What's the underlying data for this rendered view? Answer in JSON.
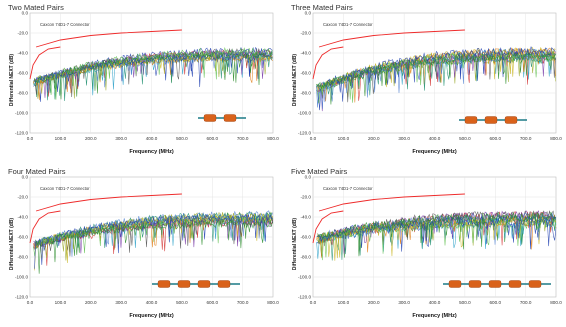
{
  "colors": {
    "limit_line": "#ee2b2b",
    "connector_body": "#d9621b",
    "cable_line": "#1c7a86",
    "gridline": "#e4e4e4",
    "series_palette": [
      "#1f3fb0",
      "#2a8c2a",
      "#d23030",
      "#2aa0c8",
      "#9aa82a",
      "#7a3aa8",
      "#e07a10",
      "#1f8f6f",
      "#555555",
      "#c8b41f",
      "#4f7fd0",
      "#60c050"
    ]
  },
  "chart_data": [
    {
      "type": "line",
      "title": "Two Mated Pairs",
      "note": "Caxcon 74D1-7 Connector",
      "xlabel": "Frequency (MHz)",
      "ylabel": "Differential NEXT (dB)",
      "x_ticks": [
        "0.0",
        "100.0",
        "200.0",
        "300.0",
        "400.0",
        "500.0",
        "600.0",
        "700.0",
        "800.0"
      ],
      "y_ticks": [
        "0.0",
        "-20.0",
        "-40.0",
        "-60.0",
        "-80.0",
        "-100.0",
        "-120.0"
      ],
      "xlim": [
        0,
        800
      ],
      "ylim": [
        -120,
        0
      ],
      "grid": true,
      "limit_curve": [
        [
          0,
          -66
        ],
        [
          10,
          -52
        ],
        [
          30,
          -42
        ],
        [
          60,
          -36
        ],
        [
          100,
          -34
        ]
      ],
      "limit_curve_2": [
        [
          20,
          -34
        ],
        [
          100,
          -27
        ],
        [
          200,
          -22.5
        ],
        [
          300,
          -20
        ],
        [
          400,
          -18.5
        ],
        [
          500,
          -17
        ]
      ],
      "noise_band": {
        "series_count": 14,
        "start_level": -72,
        "end_level": -42,
        "spread": 8
      },
      "mated_pairs": 2
    },
    {
      "type": "line",
      "title": "Three Mated Pairs",
      "note": "Caxcon 74D1-7 Connector",
      "xlabel": "Frequency (MHz)",
      "ylabel": "Differential NEXT (dB)",
      "x_ticks": [
        "0.0",
        "100.0",
        "200.0",
        "300.0",
        "400.0",
        "500.0",
        "600.0",
        "700.0",
        "800.0"
      ],
      "y_ticks": [
        "0.0",
        "-20.0",
        "-40.0",
        "-60.0",
        "-80.0",
        "-100.0",
        "-120.0"
      ],
      "xlim": [
        0,
        800
      ],
      "ylim": [
        -120,
        0
      ],
      "grid": true,
      "limit_curve": [
        [
          0,
          -66
        ],
        [
          10,
          -52
        ],
        [
          30,
          -42
        ],
        [
          60,
          -36
        ],
        [
          100,
          -34
        ]
      ],
      "limit_curve_2": [
        [
          20,
          -34
        ],
        [
          100,
          -27
        ],
        [
          200,
          -22.5
        ],
        [
          300,
          -20
        ],
        [
          400,
          -18.5
        ],
        [
          500,
          -17
        ]
      ],
      "noise_band": {
        "series_count": 14,
        "start_level": -70,
        "end_level": -42,
        "spread": 9
      },
      "mated_pairs": 3
    },
    {
      "type": "line",
      "title": "Four Mated Pairs",
      "note": "Caxcon 74D1-7 Connector",
      "xlabel": "Frequency (MHz)",
      "ylabel": "Differential NEXT (dB)",
      "x_ticks": [
        "0.0",
        "100.0",
        "200.0",
        "300.0",
        "400.0",
        "500.0",
        "600.0",
        "700.0",
        "800.0"
      ],
      "y_ticks": [
        "0.0",
        "-20.0",
        "-40.0",
        "-60.0",
        "-80.0",
        "-100.0",
        "-120.0"
      ],
      "xlim": [
        0,
        800
      ],
      "ylim": [
        -120,
        0
      ],
      "grid": true,
      "limit_curve": [
        [
          0,
          -66
        ],
        [
          10,
          -52
        ],
        [
          30,
          -42
        ],
        [
          60,
          -36
        ],
        [
          100,
          -34
        ]
      ],
      "limit_curve_2": [
        [
          20,
          -34
        ],
        [
          100,
          -27
        ],
        [
          200,
          -22.5
        ],
        [
          300,
          -20
        ],
        [
          400,
          -18.5
        ],
        [
          500,
          -17
        ]
      ],
      "noise_band": {
        "series_count": 14,
        "start_level": -68,
        "end_level": -42,
        "spread": 9
      },
      "mated_pairs": 4
    },
    {
      "type": "line",
      "title": "Five Mated Pairs",
      "note": "Caxcon 74D1-7 Connector",
      "xlabel": "Frequency (MHz)",
      "ylabel": "Differential NEXT (dB)",
      "x_ticks": [
        "0.0",
        "100.0",
        "200.0",
        "300.0",
        "400.0",
        "500.0",
        "600.0",
        "700.0",
        "800.0"
      ],
      "y_ticks": [
        "0.0",
        "-20.0",
        "-40.0",
        "-60.0",
        "-80.0",
        "-100.0",
        "-120.0"
      ],
      "xlim": [
        0,
        800
      ],
      "ylim": [
        -120,
        0
      ],
      "grid": true,
      "limit_curve": [
        [
          0,
          -66
        ],
        [
          10,
          -52
        ],
        [
          30,
          -42
        ],
        [
          60,
          -36
        ],
        [
          100,
          -34
        ]
      ],
      "limit_curve_2": [
        [
          20,
          -34
        ],
        [
          100,
          -27
        ],
        [
          200,
          -22.5
        ],
        [
          300,
          -20
        ],
        [
          400,
          -18.5
        ],
        [
          500,
          -17
        ]
      ],
      "noise_band": {
        "series_count": 14,
        "start_level": -68,
        "end_level": -42,
        "spread": 10
      },
      "mated_pairs": 5
    }
  ]
}
